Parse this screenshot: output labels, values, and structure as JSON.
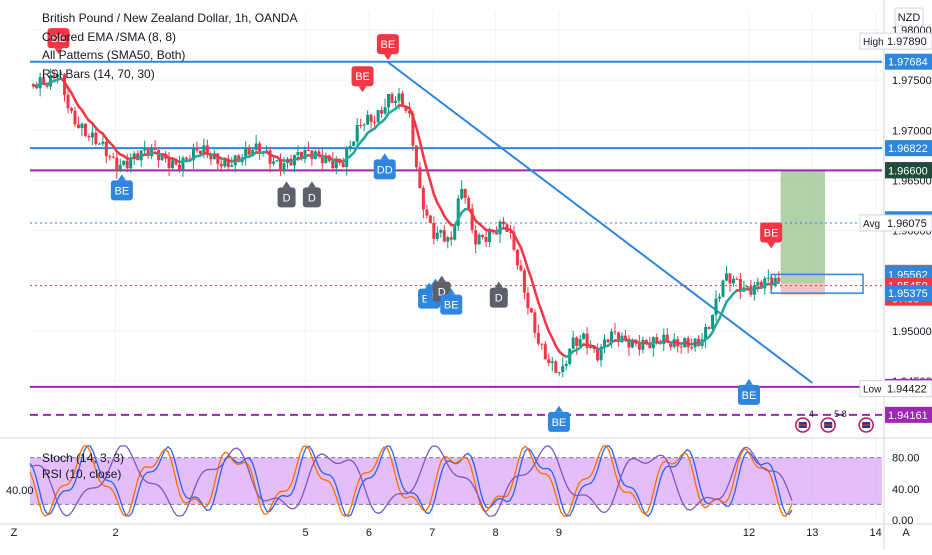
{
  "header": {
    "title": "British Pound / New Zealand Dollar, 1h, OANDA",
    "indicators": [
      "Colored EMA /SMA (8, 8)",
      "All Patterns (SMA50, Both)",
      "RSI Bars (14, 70, 30)"
    ]
  },
  "currency_label": "NZD",
  "right_axis_ticks": [
    "1.98000",
    "1.97500",
    "1.97000",
    "1.96500",
    "1.96000",
    "1.95500",
    "1.95000",
    "1.94500"
  ],
  "price_badges": [
    {
      "text": "1.97890",
      "prefix": "High",
      "kind": "highlow",
      "price": 1.9789
    },
    {
      "text": "1.97684",
      "kind": "blue",
      "price": 1.97684
    },
    {
      "text": "1.96822",
      "kind": "blue",
      "price": 1.96822
    },
    {
      "text": "1.96604",
      "kind": "purple",
      "price": 1.96604
    },
    {
      "text": "1.96600",
      "kind": "dark",
      "price": 1.966
    },
    {
      "text": "1.96112",
      "kind": "blue",
      "price": 1.96112
    },
    {
      "text": "1.96075",
      "prefix": "Avg",
      "kind": "avg",
      "price": 1.96075
    },
    {
      "text": "1.95578",
      "kind": "gray",
      "price": 1.95578
    },
    {
      "text": "1.95562",
      "kind": "blue",
      "price": 1.95562
    },
    {
      "text": "1.95450",
      "sub": "57:09",
      "kind": "red",
      "price": 1.9545
    },
    {
      "text": "1.95375",
      "kind": "red",
      "price": 1.95375
    },
    {
      "text": "1.95375",
      "kind": "blue",
      "price": 1.95375
    },
    {
      "text": "1.94440",
      "kind": "purple",
      "price": 1.9444
    },
    {
      "text": "1.94422",
      "prefix": "Low",
      "kind": "highlow",
      "price": 1.94422
    },
    {
      "text": "1.94161",
      "kind": "purple",
      "price": 1.94161
    }
  ],
  "horizontal_lines": [
    {
      "price": 1.97684,
      "color": "#2e86de",
      "style": "solid"
    },
    {
      "price": 1.96822,
      "color": "#2e86de",
      "style": "solid"
    },
    {
      "price": 1.966,
      "color": "#9c27b0",
      "style": "solid"
    },
    {
      "price": 1.9444,
      "color": "#9c27b0",
      "style": "solid"
    },
    {
      "price": 1.94161,
      "color": "#9c27b0",
      "style": "dashed"
    },
    {
      "price": 1.96075,
      "color": "#2e86de",
      "style": "dotted"
    },
    {
      "price": 1.9545,
      "color": "#e53935",
      "style": "dotted"
    }
  ],
  "x_ticks": [
    {
      "label": "2",
      "day": 2
    },
    {
      "label": "5",
      "day": 5
    },
    {
      "label": "6",
      "day": 6
    },
    {
      "label": "7",
      "day": 7
    },
    {
      "label": "8",
      "day": 8
    },
    {
      "label": "9",
      "day": 9
    },
    {
      "label": "12",
      "day": 12
    },
    {
      "label": "13",
      "day": 13
    },
    {
      "label": "14",
      "day": 14
    }
  ],
  "pattern_markers": [
    {
      "label": "BE",
      "pos": "above",
      "type": "bear",
      "day": 1.1,
      "price": 1.9776
    },
    {
      "label": "BE",
      "pos": "above",
      "type": "bear",
      "day": 6.3,
      "price": 1.977
    },
    {
      "label": "BE",
      "pos": "above",
      "type": "bear",
      "day": 5.9,
      "price": 1.9738
    },
    {
      "label": "BE",
      "pos": "below",
      "type": "bull",
      "day": 2.1,
      "price": 1.9656
    },
    {
      "label": "D",
      "pos": "below",
      "type": "neutral",
      "day": 4.7,
      "price": 1.9649
    },
    {
      "label": "D",
      "pos": "below",
      "type": "neutral",
      "day": 5.1,
      "price": 1.9649
    },
    {
      "label": "DD",
      "pos": "below",
      "type": "bull",
      "day": 6.25,
      "price": 1.9677
    },
    {
      "label": "BE",
      "pos": "below",
      "type": "bull",
      "day": 6.95,
      "price": 1.9548
    },
    {
      "label": "B",
      "pos": "below",
      "type": "bull",
      "day": 7.05,
      "price": 1.9552
    },
    {
      "label": "D",
      "pos": "below",
      "type": "neutral",
      "day": 7.15,
      "price": 1.9555
    },
    {
      "label": "BE",
      "pos": "below",
      "type": "bull",
      "day": 7.3,
      "price": 1.9542
    },
    {
      "label": "D",
      "pos": "below",
      "type": "neutral",
      "day": 8.05,
      "price": 1.9549
    },
    {
      "label": "BE",
      "pos": "below",
      "type": "bull",
      "day": 9.0,
      "price": 1.9425
    },
    {
      "label": "BE",
      "pos": "below",
      "type": "bull",
      "day": 12.0,
      "price": 1.9452
    },
    {
      "label": "BE",
      "pos": "above",
      "type": "bear",
      "day": 12.35,
      "price": 1.9582
    }
  ],
  "event_icons": [
    {
      "text": "4",
      "day": 12.85
    },
    {
      "text": "5 8",
      "day": 13.25
    },
    {
      "text": "",
      "day": 13.85
    }
  ],
  "oscillator": {
    "legend": [
      "Stoch (14, 3, 3)",
      "RSI (10, close)"
    ],
    "left_value": "40.00",
    "ticks": [
      "80.00",
      "40.00",
      "0.00"
    ],
    "band": [
      20,
      80
    ],
    "band_color": "#d9a8f5"
  },
  "bottom_bar": {
    "left": "Z",
    "right": "A"
  },
  "colors": {
    "ema": "#f23645",
    "sma": "#26a69a",
    "bull_candle": "#089981",
    "bear_candle": "#f23645",
    "trendline": "#2e86de",
    "target_zone": "#a5c89a",
    "stop_zone": "#f5b8b8",
    "blue": "#2e86de",
    "purple": "#9c27b0",
    "red": "#f23645",
    "gray": "#787b86",
    "dark": "#1e4d3a"
  },
  "chart_data": {
    "type": "candlestick",
    "title": "British Pound / New Zealand Dollar, 1h, OANDA",
    "ylim": [
      1.9395,
      1.9818
    ],
    "xlim_days": [
      0.65,
      14.1
    ],
    "trendline": {
      "from": {
        "day": 6.3,
        "price": 1.9768
      },
      "to": {
        "day": 13.0,
        "price": 1.9448
      }
    },
    "position": {
      "entry_day": 12.5,
      "entry": 1.9547,
      "target": 1.966,
      "stop": 1.9536,
      "end_day": 13.2
    },
    "price_path": [
      {
        "day": 0.7,
        "price": 1.9745
      },
      {
        "day": 0.95,
        "price": 1.9742
      },
      {
        "day": 1.1,
        "price": 1.976
      },
      {
        "day": 1.3,
        "price": 1.972
      },
      {
        "day": 1.6,
        "price": 1.969
      },
      {
        "day": 2.0,
        "price": 1.9668
      },
      {
        "day": 2.3,
        "price": 1.9675
      },
      {
        "day": 2.6,
        "price": 1.9674
      },
      {
        "day": 3.0,
        "price": 1.967
      },
      {
        "day": 3.3,
        "price": 1.9676
      },
      {
        "day": 3.6,
        "price": 1.9671
      },
      {
        "day": 4.0,
        "price": 1.9673
      },
      {
        "day": 4.3,
        "price": 1.9678
      },
      {
        "day": 4.6,
        "price": 1.967
      },
      {
        "day": 5.0,
        "price": 1.9672
      },
      {
        "day": 5.3,
        "price": 1.9676
      },
      {
        "day": 5.6,
        "price": 1.9668
      },
      {
        "day": 5.9,
        "price": 1.9705
      },
      {
        "day": 6.1,
        "price": 1.9715
      },
      {
        "day": 6.3,
        "price": 1.9735
      },
      {
        "day": 6.5,
        "price": 1.9728
      },
      {
        "day": 6.65,
        "price": 1.9705
      },
      {
        "day": 6.8,
        "price": 1.9638
      },
      {
        "day": 7.0,
        "price": 1.9603
      },
      {
        "day": 7.15,
        "price": 1.96
      },
      {
        "day": 7.3,
        "price": 1.9585
      },
      {
        "day": 7.4,
        "price": 1.9622
      },
      {
        "day": 7.5,
        "price": 1.964
      },
      {
        "day": 7.65,
        "price": 1.9592
      },
      {
        "day": 7.8,
        "price": 1.9598
      },
      {
        "day": 8.0,
        "price": 1.9602
      },
      {
        "day": 8.15,
        "price": 1.9604
      },
      {
        "day": 8.3,
        "price": 1.9575
      },
      {
        "day": 8.5,
        "price": 1.953
      },
      {
        "day": 8.7,
        "price": 1.949
      },
      {
        "day": 8.9,
        "price": 1.9462
      },
      {
        "day": 9.05,
        "price": 1.9452
      },
      {
        "day": 9.2,
        "price": 1.9485
      },
      {
        "day": 9.4,
        "price": 1.9498
      },
      {
        "day": 9.6,
        "price": 1.9478
      },
      {
        "day": 9.8,
        "price": 1.9492
      },
      {
        "day": 10.0,
        "price": 1.9488
      },
      {
        "day": 10.3,
        "price": 1.9492
      },
      {
        "day": 10.6,
        "price": 1.9487
      },
      {
        "day": 10.8,
        "price": 1.9482
      },
      {
        "day": 11.0,
        "price": 1.9491
      },
      {
        "day": 11.2,
        "price": 1.9492
      },
      {
        "day": 11.35,
        "price": 1.95
      },
      {
        "day": 11.5,
        "price": 1.9525
      },
      {
        "day": 11.6,
        "price": 1.9548
      },
      {
        "day": 11.75,
        "price": 1.9553
      },
      {
        "day": 11.9,
        "price": 1.9548
      },
      {
        "day": 12.0,
        "price": 1.9545
      },
      {
        "day": 12.5,
        "price": 1.9545
      }
    ]
  }
}
